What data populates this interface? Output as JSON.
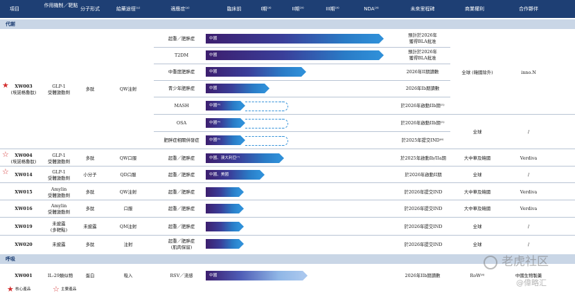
{
  "header": {
    "project": "項目",
    "mechanism": "作用機制／靶點",
    "modality": "分子形式",
    "route": "給藥途徑⁽¹⁾",
    "indication": "適應症⁽²⁾",
    "preclinical": "臨床前",
    "phase1": "I期⁽³⁾",
    "phase2": "II期⁽³⁾",
    "phase3": "III期⁽³⁾",
    "nda": "NDA⁽³⁾",
    "milestone": "未來里程碑",
    "rights": "商業權利",
    "partner": "合作夥伴"
  },
  "sections": {
    "metabolic": "代謝",
    "respiratory": "呼吸"
  },
  "xw003": {
    "name": "XW003",
    "alias": "(埃諾格魯肽)",
    "mechanism_l1": "GLP-1",
    "mechanism_l2": "受體激動劑",
    "modality": "多肽",
    "route": "QW注射",
    "rights_a": "全球 (韓國除外)",
    "partner_a": "inno.N",
    "rights_b": "全球",
    "partner_b": "/"
  },
  "xw003_rows": [
    {
      "indication": "超重／肥胖症",
      "bar_label": "中國",
      "ms1": "預計於2026年",
      "ms2": "獲得BLA批准"
    },
    {
      "indication": "T2DM",
      "bar_label": "中國",
      "ms1": "預計於2026年",
      "ms2": "獲得BLA批准"
    },
    {
      "indication": "中重度肥胖症",
      "bar_label": "中國",
      "ms1": "2026年II期讀數",
      "ms2": ""
    },
    {
      "indication": "青少年肥胖症",
      "bar_label": "中國",
      "ms1": "2026年Ib期讀數",
      "ms2": ""
    },
    {
      "indication": "MASH",
      "bar_label": "中國⁽⁴⁾",
      "ms1": "於2026年啟動IIb期⁽⁵⁾",
      "ms2": ""
    },
    {
      "indication": "OSA",
      "bar_label": "中國⁽⁴⁾",
      "ms1": "於2026年啟動IIb期⁽⁵⁾",
      "ms2": ""
    },
    {
      "indication": "肥胖症相關併發症",
      "bar_label": "中國⁽⁴⁾",
      "ms1": "於2025年提交IND⁽⁶⁾",
      "ms2": ""
    }
  ],
  "products": [
    {
      "name": "XW004",
      "alias": "(埃諾格魯肽)",
      "mech1": "GLP-1",
      "mech2": "受體激動劑",
      "modality": "多肽",
      "route": "QW口服",
      "indication1": "超重／肥胖症",
      "indication2": "",
      "bar_label": "中國、澳大利亞⁽⁷⁾",
      "milestone": "於2025年啟動Ib/IIa期",
      "rights": "大中華及韓國",
      "partner": "Verdiva"
    },
    {
      "name": "XW014",
      "alias": "",
      "mech1": "GLP-1",
      "mech2": "受體激動劑",
      "modality": "小分子",
      "route": "QD口服",
      "indication1": "超重／肥胖症",
      "indication2": "",
      "bar_label": "中國、美國",
      "milestone": "於2026年啟動II期",
      "rights": "全球",
      "partner": "/"
    },
    {
      "name": "XW015",
      "alias": "",
      "mech1": "Amylin",
      "mech2": "受體激動劑",
      "modality": "多肽",
      "route": "QW注射",
      "indication1": "超重／肥胖症",
      "indication2": "",
      "bar_label": "",
      "milestone": "於2026年提交IND",
      "rights": "大中華及韓國",
      "partner": "Verdiva"
    },
    {
      "name": "XW016",
      "alias": "",
      "mech1": "Amylin",
      "mech2": "受體激動劑",
      "modality": "多肽",
      "route": "口服",
      "indication1": "超重／肥胖症",
      "indication2": "",
      "bar_label": "",
      "milestone": "於2026年提交IND",
      "rights": "大中華及韓國",
      "partner": "Verdiva"
    },
    {
      "name": "XW019",
      "alias": "",
      "mech1": "未披露",
      "mech2": "(多靶點)",
      "modality": "未披露",
      "route": "QM注射",
      "indication1": "超重／肥胖症",
      "indication2": "",
      "bar_label": "",
      "milestone": "於2026年提交IND",
      "rights": "全球",
      "partner": "/"
    },
    {
      "name": "XW020",
      "alias": "",
      "mech1": "未披露",
      "mech2": "",
      "modality": "多肽",
      "route": "注射",
      "indication1": "超重／肥胖症",
      "indication2": "(肌肉保留)",
      "bar_label": "",
      "milestone": "於2026年提交IND",
      "rights": "全球",
      "partner": "/"
    }
  ],
  "xw001": {
    "name": "XW001",
    "mechanism": "IL-29類似物",
    "modality": "蛋白",
    "route": "吸入",
    "indication": "RSV／流感",
    "bar_label": "中國",
    "milestone": "2026年IIb期讀數",
    "rights": "RoW⁽⁸⁾",
    "partner": "中國生物製藥"
  },
  "legend": {
    "core": "核心產品",
    "key": "主要產品"
  },
  "watermark": {
    "logo": "老虎社区",
    "handle": "@偉略汇"
  },
  "colors": {
    "header": "#1e3f74",
    "section": "#c9d6e6",
    "star": "#d32f2f",
    "bar_end": "#2f8fd8"
  }
}
